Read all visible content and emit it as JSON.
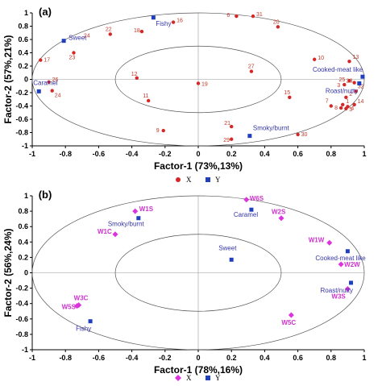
{
  "chart_data": [
    {
      "type": "scatter",
      "panel": "(a)",
      "xlabel": "Factor-1 (73%,13%)",
      "ylabel": "Factor-2 (57%,21%)",
      "xlim": [
        -1,
        1
      ],
      "ylim": [
        -1,
        1
      ],
      "xticks": [
        "-1",
        "-0.8",
        "-0.6",
        "-0.4",
        "-0.2",
        "0",
        "0.2",
        "0.4",
        "0.6",
        "0.8",
        "1"
      ],
      "yticks": [
        "-1",
        "-0.8",
        "-0.6",
        "-0.4",
        "-0.2",
        "0",
        "0.2",
        "0.4",
        "0.6",
        "0.8",
        "1"
      ],
      "legend": [
        "X",
        "Y"
      ],
      "colors": {
        "X": "#d62728",
        "Y": "#1f3fbf"
      },
      "ellipses": [
        1.0,
        0.5
      ],
      "series": [
        {
          "name": "X",
          "marker": "circle",
          "points": [
            {
              "label": "1",
              "x": 0.87,
              "y": -0.38
            },
            {
              "label": "2",
              "x": 0.89,
              "y": -0.27
            },
            {
              "label": "3",
              "x": 0.88,
              "y": -0.08
            },
            {
              "label": "4",
              "x": 0.9,
              "y": -0.41
            },
            {
              "label": "5",
              "x": 0.89,
              "y": -0.44
            },
            {
              "label": "6",
              "x": 0.23,
              "y": 0.95
            },
            {
              "label": "7",
              "x": 0.8,
              "y": -0.4
            },
            {
              "label": "8",
              "x": 0.86,
              "y": -0.43
            },
            {
              "label": "9",
              "x": -0.21,
              "y": -0.77
            },
            {
              "label": "10",
              "x": 0.7,
              "y": 0.3
            },
            {
              "label": "11",
              "x": -0.3,
              "y": -0.32
            },
            {
              "label": "12",
              "x": -0.37,
              "y": 0.02
            },
            {
              "label": "13",
              "x": 0.91,
              "y": 0.27
            },
            {
              "label": "14",
              "x": 0.94,
              "y": -0.38
            },
            {
              "label": "15",
              "x": 0.55,
              "y": -0.27
            },
            {
              "label": "16",
              "x": -0.15,
              "y": 0.86
            },
            {
              "label": "17",
              "x": -0.95,
              "y": 0.29
            },
            {
              "label": "18",
              "x": -0.34,
              "y": 0.72
            },
            {
              "label": "19",
              "x": 0.0,
              "y": -0.06
            },
            {
              "label": "20",
              "x": 0.48,
              "y": 0.79
            },
            {
              "label": "21",
              "x": 0.2,
              "y": -0.71
            },
            {
              "label": "22",
              "x": -0.53,
              "y": 0.68
            },
            {
              "label": "23",
              "x": -0.75,
              "y": 0.4
            },
            {
              "label": "24",
              "x": -0.88,
              "y": -0.17
            },
            {
              "label": "25",
              "x": 0.91,
              "y": -0.02
            },
            {
              "label": "26",
              "x": -0.9,
              "y": -0.04
            },
            {
              "label": "27",
              "x": 0.32,
              "y": 0.12
            },
            {
              "label": "28",
              "x": 0.94,
              "y": -0.05
            },
            {
              "label": "29",
              "x": 0.2,
              "y": -0.9
            },
            {
              "label": "30",
              "x": 0.6,
              "y": -0.83
            },
            {
              "label": "31",
              "x": 0.33,
              "y": 0.95
            },
            {
              "label": "32",
              "x": 0.95,
              "y": -0.18
            }
          ]
        },
        {
          "name": "Y",
          "marker": "square",
          "points": [
            {
              "label": "Fishy",
              "x": -0.27,
              "y": 0.93
            },
            {
              "label": "Sweet",
              "x": -0.81,
              "y": 0.58
            },
            {
              "label": "Caramel",
              "x": -0.96,
              "y": -0.18
            },
            {
              "label": "Smoky/burnt",
              "x": 0.31,
              "y": -0.85
            },
            {
              "label": "Cooked-meat like",
              "x": 0.99,
              "y": 0.04
            },
            {
              "label": "Roast/nutty",
              "x": 0.97,
              "y": -0.06
            }
          ]
        }
      ],
      "extra_tick_labels": [
        {
          "text": "24",
          "x": -0.69,
          "y": 0.63
        }
      ]
    },
    {
      "type": "scatter",
      "panel": "(b)",
      "xlabel": "Factor-1 (78%,16%)",
      "ylabel": "Factor-2 (56%,24%)",
      "xlim": [
        -1,
        1
      ],
      "ylim": [
        -1,
        1
      ],
      "xticks": [
        "-1",
        "-0.8",
        "-0.6",
        "-0.4",
        "-0.2",
        "0",
        "0.2",
        "0.4",
        "0.6",
        "0.8",
        "1"
      ],
      "yticks": [
        "-1",
        "-0.8",
        "-0.6",
        "-0.4",
        "-0.2",
        "0",
        "0.2",
        "0.4",
        "0.6",
        "0.8",
        "1"
      ],
      "legend": [
        "X",
        "Y"
      ],
      "colors": {
        "X": "#dd33dd",
        "Y": "#1f3fbf"
      },
      "ellipses": [
        1.0,
        0.5
      ],
      "series": [
        {
          "name": "X",
          "marker": "diamond",
          "points": [
            {
              "label": "W1S",
              "x": -0.38,
              "y": 0.8
            },
            {
              "label": "W1C",
              "x": -0.5,
              "y": 0.5
            },
            {
              "label": "W6S",
              "x": 0.29,
              "y": 0.95
            },
            {
              "label": "W2S",
              "x": 0.5,
              "y": 0.71
            },
            {
              "label": "W1W",
              "x": 0.79,
              "y": 0.39
            },
            {
              "label": "W2W",
              "x": 0.86,
              "y": 0.11
            },
            {
              "label": "W3S",
              "x": 0.9,
              "y": -0.21
            },
            {
              "label": "W5S",
              "x": -0.73,
              "y": -0.43
            },
            {
              "label": "W3C",
              "x": -0.72,
              "y": -0.42
            },
            {
              "label": "W5C",
              "x": 0.56,
              "y": -0.55
            }
          ]
        },
        {
          "name": "Y",
          "marker": "square",
          "points": [
            {
              "label": "Smoky/burnt",
              "x": -0.36,
              "y": 0.71
            },
            {
              "label": "Caramel",
              "x": 0.32,
              "y": 0.82
            },
            {
              "label": "Sweet",
              "x": 0.2,
              "y": 0.17
            },
            {
              "label": "Cooked-meat like",
              "x": 0.9,
              "y": 0.28
            },
            {
              "label": "Roast/nutty",
              "x": 0.92,
              "y": -0.13
            },
            {
              "label": "Fishy",
              "x": -0.65,
              "y": -0.63
            }
          ]
        }
      ]
    }
  ]
}
